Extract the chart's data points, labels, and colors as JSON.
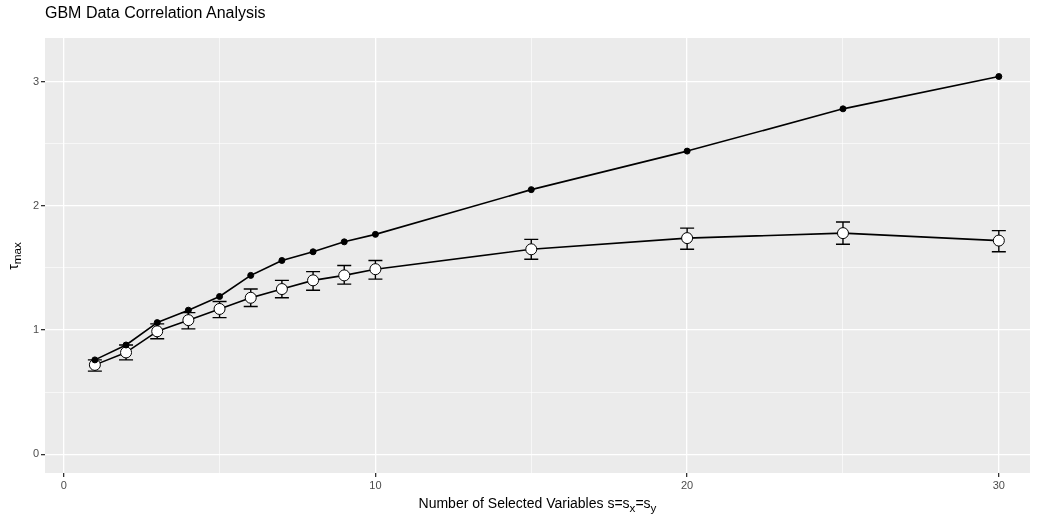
{
  "chart_data": {
    "type": "line",
    "title": "GBM Data Correlation Analysis",
    "xlabel": "Number of Selected Variables s=s$_{x}$=s$_{y}$",
    "ylabel": "τ$_{max}$",
    "x": [
      1,
      2,
      3,
      4,
      5,
      6,
      7,
      8,
      9,
      10,
      15,
      20,
      25,
      30
    ],
    "series": [
      {
        "color": "#000000",
        "marker": "circle",
        "values": [
          0.76,
          0.88,
          1.06,
          1.16,
          1.27,
          1.44,
          1.56,
          1.63,
          1.71,
          1.77,
          2.13,
          2.44,
          2.78,
          3.04
        ]
      },
      {
        "color": "#000000",
        "marker": "circle",
        "values": [
          0.72,
          0.82,
          0.99,
          1.08,
          1.17,
          1.26,
          1.33,
          1.4,
          1.44,
          1.49,
          1.65,
          1.74,
          1.78,
          1.72
        ],
        "errors": [
          [
            0.67,
            0.76
          ],
          [
            0.76,
            0.88
          ],
          [
            0.93,
            1.05
          ],
          [
            1.01,
            1.14
          ],
          [
            1.1,
            1.23
          ],
          [
            1.19,
            1.33
          ],
          [
            1.26,
            1.4
          ],
          [
            1.32,
            1.47
          ],
          [
            1.37,
            1.52
          ],
          [
            1.41,
            1.56
          ],
          [
            1.57,
            1.73
          ],
          [
            1.65,
            1.82
          ],
          [
            1.69,
            1.87
          ],
          [
            1.63,
            1.8
          ]
        ]
      }
    ],
    "xlim": [
      -0.6,
      31.0
    ],
    "ylim": [
      -0.15,
      3.35
    ],
    "xticks": [
      0,
      {
        "value": 5,
        "label": null
      },
      10,
      {
        "value": 15,
        "label": null
      },
      20,
      {
        "value": 25,
        "label": null
      },
      30
    ],
    "yticks": [
      0,
      {
        "value": 0.5,
        "label": null
      },
      1,
      {
        "value": 1.5,
        "label": null
      },
      2,
      {
        "value": 2.5,
        "label": null
      },
      3
    ],
    "grid": true,
    "legend": false,
    "line_style": "solid"
  }
}
